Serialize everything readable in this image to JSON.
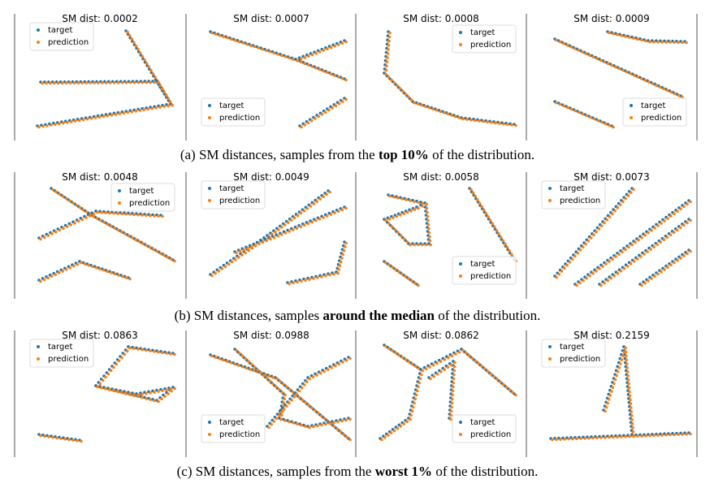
{
  "rows": [
    {
      "panels": [
        {
          "title": "SM dist: 0.0002",
          "legend": {
            "loc": "upper left",
            "entries": [
              "target",
              "prediction"
            ]
          }
        },
        {
          "title": "SM dist: 0.0007",
          "legend": {
            "loc": "lower left",
            "entries": [
              "target",
              "prediction"
            ]
          }
        },
        {
          "title": "SM dist: 0.0008",
          "legend": {
            "loc": "upper right",
            "entries": [
              "target",
              "prediction"
            ]
          }
        },
        {
          "title": "SM dist: 0.0009",
          "legend": {
            "loc": "lower right",
            "entries": [
              "target",
              "prediction"
            ]
          }
        }
      ],
      "caption": [
        "(a) SM distances, samples from the ",
        "top 10%",
        " of the distribution."
      ]
    },
    {
      "panels": [
        {
          "title": "SM dist: 0.0048",
          "legend": {
            "loc": "upper right",
            "entries": [
              "target",
              "prediction"
            ]
          }
        },
        {
          "title": "SM dist: 0.0049",
          "legend": {
            "loc": "upper left",
            "entries": [
              "target",
              "prediction"
            ]
          }
        },
        {
          "title": "SM dist: 0.0058",
          "legend": {
            "loc": "lower right",
            "entries": [
              "target",
              "prediction"
            ]
          }
        },
        {
          "title": "SM dist: 0.0073",
          "legend": {
            "loc": "upper left",
            "entries": [
              "target",
              "prediction"
            ]
          }
        }
      ],
      "caption": [
        "(b) SM distances, samples ",
        "around the median",
        " of the distribution."
      ]
    },
    {
      "panels": [
        {
          "title": "SM dist: 0.0863",
          "legend": {
            "loc": "upper left",
            "entries": [
              "target",
              "prediction"
            ]
          }
        },
        {
          "title": "SM dist: 0.0988",
          "legend": {
            "loc": "lower left",
            "entries": [
              "target",
              "prediction"
            ]
          }
        },
        {
          "title": "SM dist: 0.0862",
          "legend": {
            "loc": "lower right",
            "entries": [
              "target",
              "prediction"
            ]
          }
        },
        {
          "title": "SM dist: 0.2159",
          "legend": {
            "loc": "upper left",
            "entries": [
              "target",
              "prediction"
            ]
          }
        }
      ],
      "caption": [
        "(c) SM distances, samples from the ",
        "worst 1%",
        " of the distribution."
      ]
    }
  ]
}
